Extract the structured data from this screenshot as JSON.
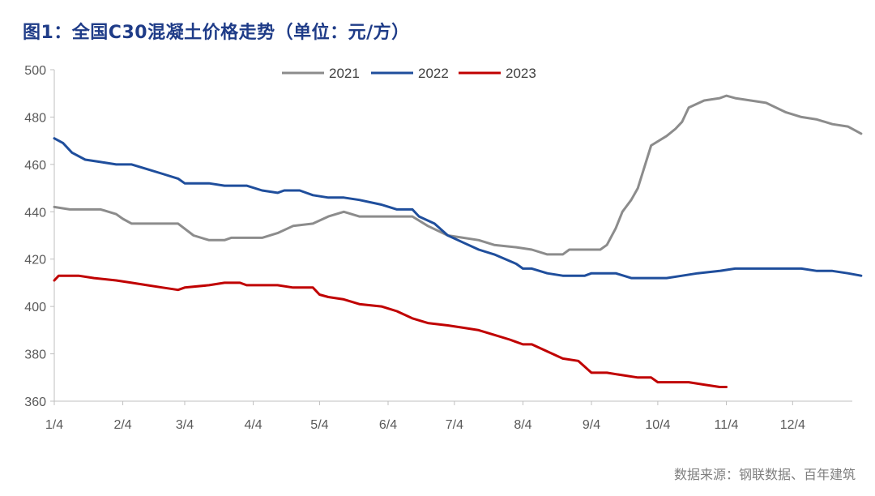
{
  "page": {
    "title": "图1：全国C30混凝土价格走势（单位：元/方）",
    "source": "数据来源：钢联数据、百年建筑"
  },
  "chart_data": {
    "type": "line",
    "title": "图1：全国C30混凝土价格走势（单位：元/方）",
    "ylabel": "元/方",
    "xlabel": "",
    "ylim": [
      360,
      500
    ],
    "yticks": [
      360,
      380,
      400,
      420,
      440,
      460,
      480,
      500
    ],
    "xlim_days": [
      0,
      361
    ],
    "xtick_labels": [
      "1/4",
      "2/4",
      "3/4",
      "4/4",
      "5/4",
      "6/4",
      "7/4",
      "8/4",
      "9/4",
      "10/4",
      "11/4",
      "12/4"
    ],
    "grid": false,
    "legend": "top-center",
    "series": [
      {
        "name": "2021",
        "color": "#8c8c8c",
        "points": [
          [
            "1/4",
            442
          ],
          [
            "1/11",
            441
          ],
          [
            "1/25",
            441
          ],
          [
            "2/1",
            439
          ],
          [
            "2/4",
            437
          ],
          [
            "2/8",
            435
          ],
          [
            "2/22",
            435
          ],
          [
            "3/1",
            435
          ],
          [
            "3/8",
            430
          ],
          [
            "3/15",
            428
          ],
          [
            "3/22",
            428
          ],
          [
            "3/25",
            429
          ],
          [
            "4/8",
            429
          ],
          [
            "4/15",
            431
          ],
          [
            "4/22",
            434
          ],
          [
            "5/1",
            435
          ],
          [
            "5/8",
            438
          ],
          [
            "5/15",
            440
          ],
          [
            "5/22",
            438
          ],
          [
            "6/1",
            438
          ],
          [
            "6/15",
            438
          ],
          [
            "6/22",
            434
          ],
          [
            "7/1",
            430
          ],
          [
            "7/8",
            429
          ],
          [
            "7/15",
            428
          ],
          [
            "7/22",
            426
          ],
          [
            "8/1",
            425
          ],
          [
            "8/8",
            424
          ],
          [
            "8/15",
            422
          ],
          [
            "8/22",
            422
          ],
          [
            "8/25",
            424
          ],
          [
            "9/1",
            424
          ],
          [
            "9/8",
            424
          ],
          [
            "9/11",
            426
          ],
          [
            "9/15",
            433
          ],
          [
            "9/18",
            440
          ],
          [
            "9/22",
            445
          ],
          [
            "9/25",
            450
          ],
          [
            "10/1",
            468
          ],
          [
            "10/8",
            472
          ],
          [
            "10/12",
            475
          ],
          [
            "10/15",
            478
          ],
          [
            "10/18",
            484
          ],
          [
            "10/25",
            487
          ],
          [
            "11/1",
            488
          ],
          [
            "11/4",
            489
          ],
          [
            "11/8",
            488
          ],
          [
            "11/15",
            487
          ],
          [
            "11/22",
            486
          ],
          [
            "12/1",
            482
          ],
          [
            "12/8",
            480
          ],
          [
            "12/15",
            479
          ],
          [
            "12/22",
            477
          ],
          [
            "12/29",
            476
          ],
          [
            "1/4+",
            473
          ]
        ]
      },
      {
        "name": "2022",
        "color": "#1f4e9c",
        "points": [
          [
            "1/4",
            471
          ],
          [
            "1/8",
            469
          ],
          [
            "1/12",
            465
          ],
          [
            "1/18",
            462
          ],
          [
            "1/25",
            461
          ],
          [
            "2/1",
            460
          ],
          [
            "2/8",
            460
          ],
          [
            "2/15",
            458
          ],
          [
            "2/22",
            456
          ],
          [
            "3/1",
            454
          ],
          [
            "3/4",
            452
          ],
          [
            "3/15",
            452
          ],
          [
            "3/22",
            451
          ],
          [
            "4/1",
            451
          ],
          [
            "4/8",
            449
          ],
          [
            "4/15",
            448
          ],
          [
            "4/18",
            449
          ],
          [
            "4/25",
            449
          ],
          [
            "5/1",
            447
          ],
          [
            "5/8",
            446
          ],
          [
            "5/15",
            446
          ],
          [
            "5/22",
            445
          ],
          [
            "6/1",
            443
          ],
          [
            "6/8",
            441
          ],
          [
            "6/15",
            441
          ],
          [
            "6/18",
            438
          ],
          [
            "6/25",
            435
          ],
          [
            "7/1",
            430
          ],
          [
            "7/8",
            427
          ],
          [
            "7/15",
            424
          ],
          [
            "7/22",
            422
          ],
          [
            "8/1",
            418
          ],
          [
            "8/4",
            416
          ],
          [
            "8/8",
            416
          ],
          [
            "8/15",
            414
          ],
          [
            "8/22",
            413
          ],
          [
            "9/1",
            413
          ],
          [
            "9/4",
            414
          ],
          [
            "9/15",
            414
          ],
          [
            "9/22",
            412
          ],
          [
            "10/1",
            412
          ],
          [
            "10/8",
            412
          ],
          [
            "10/15",
            413
          ],
          [
            "10/22",
            414
          ],
          [
            "11/1",
            415
          ],
          [
            "11/8",
            416
          ],
          [
            "11/15",
            416
          ],
          [
            "11/22",
            416
          ],
          [
            "12/1",
            416
          ],
          [
            "12/8",
            416
          ],
          [
            "12/15",
            415
          ],
          [
            "12/22",
            415
          ],
          [
            "12/29",
            414
          ],
          [
            "1/4+",
            413
          ]
        ]
      },
      {
        "name": "2023",
        "color": "#c00000",
        "points": [
          [
            "1/4",
            411
          ],
          [
            "1/6",
            413
          ],
          [
            "1/15",
            413
          ],
          [
            "1/22",
            412
          ],
          [
            "2/1",
            411
          ],
          [
            "2/8",
            410
          ],
          [
            "2/15",
            409
          ],
          [
            "2/22",
            408
          ],
          [
            "3/1",
            407
          ],
          [
            "3/4",
            408
          ],
          [
            "3/15",
            409
          ],
          [
            "3/22",
            410
          ],
          [
            "3/29",
            410
          ],
          [
            "4/1",
            409
          ],
          [
            "4/15",
            409
          ],
          [
            "4/22",
            408
          ],
          [
            "5/1",
            408
          ],
          [
            "5/4",
            405
          ],
          [
            "5/8",
            404
          ],
          [
            "5/15",
            403
          ],
          [
            "5/22",
            401
          ],
          [
            "6/1",
            400
          ],
          [
            "6/8",
            398
          ],
          [
            "6/15",
            395
          ],
          [
            "6/22",
            393
          ],
          [
            "7/1",
            392
          ],
          [
            "7/8",
            391
          ],
          [
            "7/15",
            390
          ],
          [
            "7/22",
            388
          ],
          [
            "7/29",
            386
          ],
          [
            "8/4",
            384
          ],
          [
            "8/8",
            384
          ],
          [
            "8/15",
            381
          ],
          [
            "8/22",
            378
          ],
          [
            "8/29",
            377
          ],
          [
            "9/4",
            372
          ],
          [
            "9/11",
            372
          ],
          [
            "9/18",
            371
          ],
          [
            "9/25",
            370
          ],
          [
            "10/1",
            370
          ],
          [
            "10/4",
            368
          ],
          [
            "10/18",
            368
          ],
          [
            "10/25",
            367
          ],
          [
            "11/1",
            366
          ],
          [
            "11/4",
            366
          ]
        ]
      }
    ]
  }
}
